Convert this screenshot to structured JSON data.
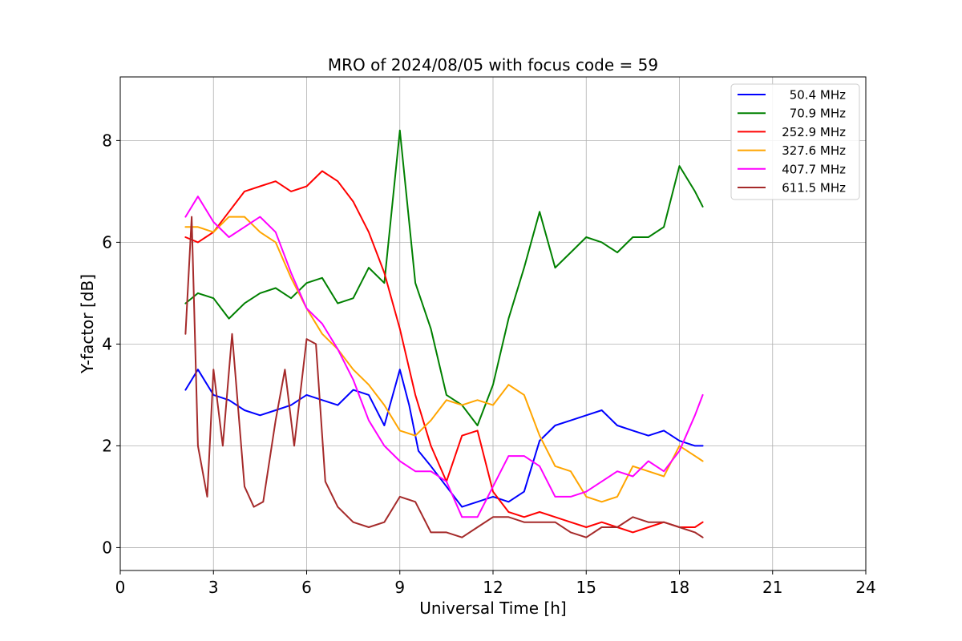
{
  "chart_data": {
    "type": "line",
    "title": "MRO of 2024/08/05 with focus code = 59",
    "xlabel": "Universal Time [h]",
    "ylabel": "Y-factor [dB]",
    "xlim": [
      0,
      24
    ],
    "ylim": [
      -0.45,
      9.25
    ],
    "xticks": [
      0,
      3,
      6,
      9,
      12,
      15,
      18,
      21,
      24
    ],
    "yticks": [
      0,
      2,
      4,
      6,
      8
    ],
    "grid": true,
    "legend_position": "top-right",
    "series": [
      {
        "name": "50.4 MHz",
        "color": "#0000ff",
        "x": [
          2.1,
          2.5,
          3.0,
          3.5,
          4.0,
          4.5,
          5.0,
          5.5,
          6.0,
          6.5,
          7.0,
          7.5,
          8.0,
          8.5,
          9.0,
          9.3,
          9.6,
          10.0,
          10.5,
          11.0,
          11.5,
          12.0,
          12.5,
          13.0,
          13.5,
          14.0,
          14.5,
          15.0,
          15.5,
          16.0,
          16.5,
          17.0,
          17.5,
          18.0,
          18.5,
          18.75
        ],
        "y": [
          3.1,
          3.5,
          3.0,
          2.9,
          2.7,
          2.6,
          2.7,
          2.8,
          3.0,
          2.9,
          2.8,
          3.1,
          3.0,
          2.4,
          3.5,
          2.8,
          1.9,
          1.6,
          1.2,
          0.8,
          0.9,
          1.0,
          0.9,
          1.1,
          2.1,
          2.4,
          2.5,
          2.6,
          2.7,
          2.4,
          2.3,
          2.2,
          2.3,
          2.1,
          2.0,
          2.0
        ]
      },
      {
        "name": "70.9 MHz",
        "color": "#008000",
        "x": [
          2.1,
          2.5,
          3.0,
          3.5,
          4.0,
          4.5,
          5.0,
          5.5,
          6.0,
          6.5,
          7.0,
          7.5,
          8.0,
          8.5,
          9.0,
          9.5,
          10.0,
          10.5,
          11.0,
          11.5,
          12.0,
          12.5,
          13.0,
          13.5,
          14.0,
          14.5,
          15.0,
          15.5,
          16.0,
          16.5,
          17.0,
          17.5,
          18.0,
          18.5,
          18.75
        ],
        "y": [
          4.8,
          5.0,
          4.9,
          4.5,
          4.8,
          5.0,
          5.1,
          4.9,
          5.2,
          5.3,
          4.8,
          4.9,
          5.5,
          5.2,
          8.2,
          5.2,
          4.3,
          3.0,
          2.8,
          2.4,
          3.2,
          4.5,
          5.5,
          6.6,
          5.5,
          5.8,
          6.1,
          6.0,
          5.8,
          6.1,
          6.1,
          6.3,
          7.5,
          7.0,
          6.7
        ]
      },
      {
        "name": "252.9 MHz",
        "color": "#ff0000",
        "x": [
          2.1,
          2.5,
          3.0,
          3.5,
          4.0,
          4.5,
          5.0,
          5.5,
          6.0,
          6.5,
          7.0,
          7.5,
          8.0,
          8.5,
          9.0,
          9.5,
          10.0,
          10.5,
          11.0,
          11.5,
          12.0,
          12.5,
          13.0,
          13.5,
          14.0,
          14.5,
          15.0,
          15.5,
          16.0,
          16.5,
          17.0,
          17.5,
          18.0,
          18.5,
          18.75
        ],
        "y": [
          6.1,
          6.0,
          6.2,
          6.6,
          7.0,
          7.1,
          7.2,
          7.0,
          7.1,
          7.4,
          7.2,
          6.8,
          6.2,
          5.4,
          4.3,
          3.0,
          2.0,
          1.3,
          2.2,
          2.3,
          1.1,
          0.7,
          0.6,
          0.7,
          0.6,
          0.5,
          0.4,
          0.5,
          0.4,
          0.3,
          0.4,
          0.5,
          0.4,
          0.4,
          0.5
        ]
      },
      {
        "name": "327.6 MHz",
        "color": "#ffa500",
        "x": [
          2.1,
          2.5,
          3.0,
          3.5,
          4.0,
          4.5,
          5.0,
          5.5,
          6.0,
          6.5,
          7.0,
          7.5,
          8.0,
          8.5,
          9.0,
          9.5,
          10.0,
          10.5,
          11.0,
          11.5,
          12.0,
          12.5,
          13.0,
          13.5,
          14.0,
          14.5,
          15.0,
          15.5,
          16.0,
          16.5,
          17.0,
          17.5,
          18.0,
          18.5,
          18.75
        ],
        "y": [
          6.3,
          6.3,
          6.2,
          6.5,
          6.5,
          6.2,
          6.0,
          5.3,
          4.7,
          4.2,
          3.9,
          3.5,
          3.2,
          2.8,
          2.3,
          2.2,
          2.5,
          2.9,
          2.8,
          2.9,
          2.8,
          3.2,
          3.0,
          2.2,
          1.6,
          1.5,
          1.0,
          0.9,
          1.0,
          1.6,
          1.5,
          1.4,
          2.0,
          1.8,
          1.7
        ]
      },
      {
        "name": "407.7 MHz",
        "color": "#ff00ff",
        "x": [
          2.1,
          2.5,
          3.0,
          3.5,
          4.0,
          4.5,
          5.0,
          5.5,
          6.0,
          6.5,
          7.0,
          7.5,
          8.0,
          8.5,
          9.0,
          9.5,
          10.0,
          10.5,
          11.0,
          11.5,
          12.0,
          12.5,
          13.0,
          13.5,
          14.0,
          14.5,
          15.0,
          15.5,
          16.0,
          16.5,
          17.0,
          17.5,
          18.0,
          18.5,
          18.75
        ],
        "y": [
          6.5,
          6.9,
          6.4,
          6.1,
          6.3,
          6.5,
          6.2,
          5.4,
          4.7,
          4.4,
          3.9,
          3.3,
          2.5,
          2.0,
          1.7,
          1.5,
          1.5,
          1.3,
          0.6,
          0.6,
          1.2,
          1.8,
          1.8,
          1.6,
          1.0,
          1.0,
          1.1,
          1.3,
          1.5,
          1.4,
          1.7,
          1.5,
          1.9,
          2.6,
          3.0
        ]
      },
      {
        "name": "611.5 MHz",
        "color": "#a52a2a",
        "x": [
          2.1,
          2.3,
          2.5,
          2.8,
          3.0,
          3.3,
          3.6,
          4.0,
          4.3,
          4.6,
          5.0,
          5.3,
          5.6,
          6.0,
          6.3,
          6.6,
          7.0,
          7.5,
          8.0,
          8.5,
          9.0,
          9.5,
          10.0,
          10.5,
          11.0,
          11.5,
          12.0,
          12.5,
          13.0,
          13.5,
          14.0,
          14.5,
          15.0,
          15.5,
          16.0,
          16.5,
          17.0,
          17.5,
          18.0,
          18.5,
          18.75
        ],
        "y": [
          4.2,
          6.5,
          2.0,
          1.0,
          3.5,
          2.0,
          4.2,
          1.2,
          0.8,
          0.9,
          2.5,
          3.5,
          2.0,
          4.1,
          4.0,
          1.3,
          0.8,
          0.5,
          0.4,
          0.5,
          1.0,
          0.9,
          0.3,
          0.3,
          0.2,
          0.4,
          0.6,
          0.6,
          0.5,
          0.5,
          0.5,
          0.3,
          0.2,
          0.4,
          0.4,
          0.6,
          0.5,
          0.5,
          0.4,
          0.3,
          0.2
        ]
      }
    ]
  }
}
